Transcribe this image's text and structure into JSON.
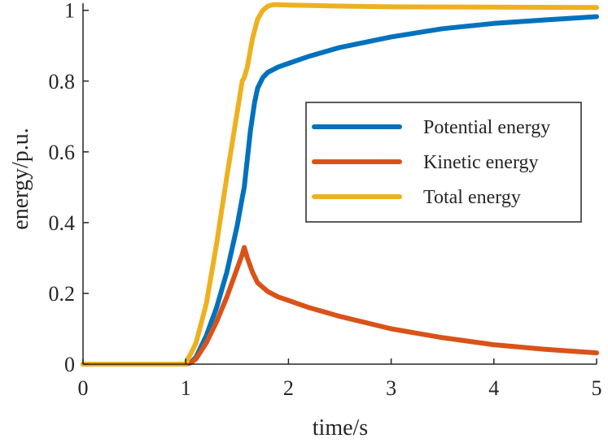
{
  "chart_data": {
    "type": "line",
    "title": "",
    "xlabel": "time/s",
    "ylabel": "energy/p.u.",
    "xlim": [
      0,
      5
    ],
    "ylim": [
      0,
      1.02
    ],
    "xticks": [
      0,
      1,
      2,
      3,
      4,
      5
    ],
    "xtick_labels": [
      "0",
      "1",
      "2",
      "3",
      "4",
      "5"
    ],
    "yticks": [
      0,
      0.2,
      0.4,
      0.6,
      0.8,
      1
    ],
    "ytick_labels": [
      "0",
      "0.2",
      "0.4",
      "0.6",
      "0.8",
      "1"
    ],
    "grid": false,
    "legend_position": "center-right",
    "series": [
      {
        "name": "Potential energy",
        "color": "#0072BD",
        "x": [
          0,
          1.0,
          1.05,
          1.1,
          1.2,
          1.3,
          1.4,
          1.5,
          1.55,
          1.57,
          1.6,
          1.63,
          1.67,
          1.7,
          1.75,
          1.8,
          1.9,
          2.0,
          2.2,
          2.5,
          3.0,
          3.5,
          4.0,
          4.5,
          5.0
        ],
        "y": [
          0,
          0,
          0.005,
          0.02,
          0.08,
          0.16,
          0.26,
          0.39,
          0.47,
          0.5,
          0.58,
          0.66,
          0.74,
          0.78,
          0.81,
          0.825,
          0.84,
          0.85,
          0.87,
          0.895,
          0.925,
          0.948,
          0.963,
          0.973,
          0.982
        ]
      },
      {
        "name": "Kinetic energy",
        "color": "#D95319",
        "x": [
          0,
          1.0,
          1.05,
          1.1,
          1.2,
          1.3,
          1.4,
          1.5,
          1.55,
          1.57,
          1.6,
          1.65,
          1.7,
          1.8,
          1.9,
          2.0,
          2.2,
          2.5,
          3.0,
          3.5,
          4.0,
          4.5,
          5.0
        ],
        "y": [
          0,
          0,
          0.004,
          0.015,
          0.06,
          0.12,
          0.19,
          0.27,
          0.31,
          0.33,
          0.3,
          0.26,
          0.23,
          0.205,
          0.19,
          0.18,
          0.16,
          0.135,
          0.1,
          0.075,
          0.055,
          0.042,
          0.032
        ]
      },
      {
        "name": "Total energy",
        "color": "#EDB120",
        "x": [
          0,
          1.0,
          1.02,
          1.05,
          1.1,
          1.2,
          1.3,
          1.4,
          1.5,
          1.55,
          1.57,
          1.6,
          1.65,
          1.7,
          1.75,
          1.8,
          1.85,
          1.9,
          2.0,
          2.5,
          3.0,
          4.0,
          5.0
        ],
        "y": [
          0,
          0,
          0.015,
          0.03,
          0.06,
          0.17,
          0.34,
          0.53,
          0.71,
          0.8,
          0.81,
          0.84,
          0.92,
          0.975,
          1.0,
          1.012,
          1.016,
          1.016,
          1.015,
          1.012,
          1.01,
          1.009,
          1.008
        ]
      }
    ]
  }
}
